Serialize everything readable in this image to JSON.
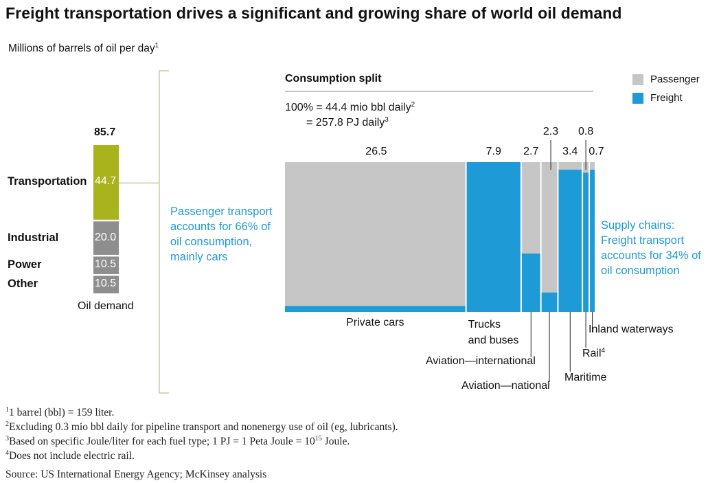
{
  "title": "Freight transportation drives a significant and growing share of world oil demand",
  "subtitle": "Millions of barrels of oil per day",
  "subtitle_sup": "1",
  "colors": {
    "passenger": "#c6c6c6",
    "freight": "#1e9ad6",
    "transportation": "#a9b31c",
    "other_sectors": "#8e8e8e",
    "bracket": "#c9cca1"
  },
  "chart_data": [
    {
      "type": "bar",
      "title": "",
      "xlabel": "Oil demand",
      "total": 85.7,
      "segments": [
        {
          "name": "Transportation",
          "value": 44.7
        },
        {
          "name": "Industrial",
          "value": 20.0
        },
        {
          "name": "Power",
          "value": 10.5
        },
        {
          "name": "Other",
          "value": 10.5
        }
      ]
    },
    {
      "type": "bar",
      "title": "Consumption split",
      "note_line1": "100% = 44.4 mio bbl daily",
      "note_line1_sup": "2",
      "note_line2": "= 257.8 PJ daily",
      "note_line2_sup": "3",
      "legend": [
        "Passenger",
        "Freight"
      ],
      "legend_position": "top-right",
      "categories": [
        {
          "name": "Private cars",
          "sup": "",
          "total": 26.5,
          "freight_share": 0.04
        },
        {
          "name": "Trucks and buses",
          "name_line1": "Trucks",
          "name_line2": "and buses",
          "sup": "",
          "total": 7.9,
          "freight_share": 1.0
        },
        {
          "name": "Aviation—international",
          "sup": "",
          "total": 2.7,
          "freight_share": 0.39
        },
        {
          "name": "Aviation—national",
          "sup": "",
          "total": 2.3,
          "freight_share": 0.13
        },
        {
          "name": "Maritime",
          "sup": "",
          "total": 3.4,
          "freight_share": 0.95
        },
        {
          "name": "Rail",
          "sup": "4",
          "total": 0.8,
          "freight_share": 0.93
        },
        {
          "name": "Inland waterways",
          "sup": "",
          "total": 0.7,
          "freight_share": 0.95
        }
      ]
    }
  ],
  "annotations": {
    "passenger": [
      "Passenger transport",
      "accounts for 66% of",
      "oil consumption,",
      "mainly cars"
    ],
    "freight": [
      "Supply chains:",
      "Freight transport",
      "accounts for 34% of",
      "oil consumption"
    ]
  },
  "footnotes": [
    {
      "num": "1",
      "text": "1 barrel (bbl) = 159 liter."
    },
    {
      "num": "2",
      "text": "Excluding 0.3 mio bbl daily for pipeline transport and nonenergy use of oil (eg, lubricants)."
    },
    {
      "num": "3",
      "text": "Based on specific Joule/liter for each fuel type; 1 PJ = 1 Peta Joule = 10",
      "sup": "15",
      "tail": " Joule."
    },
    {
      "num": "4",
      "text": "Does not include electric rail."
    }
  ],
  "source": "Source: US International Energy Agency; McKinsey analysis"
}
